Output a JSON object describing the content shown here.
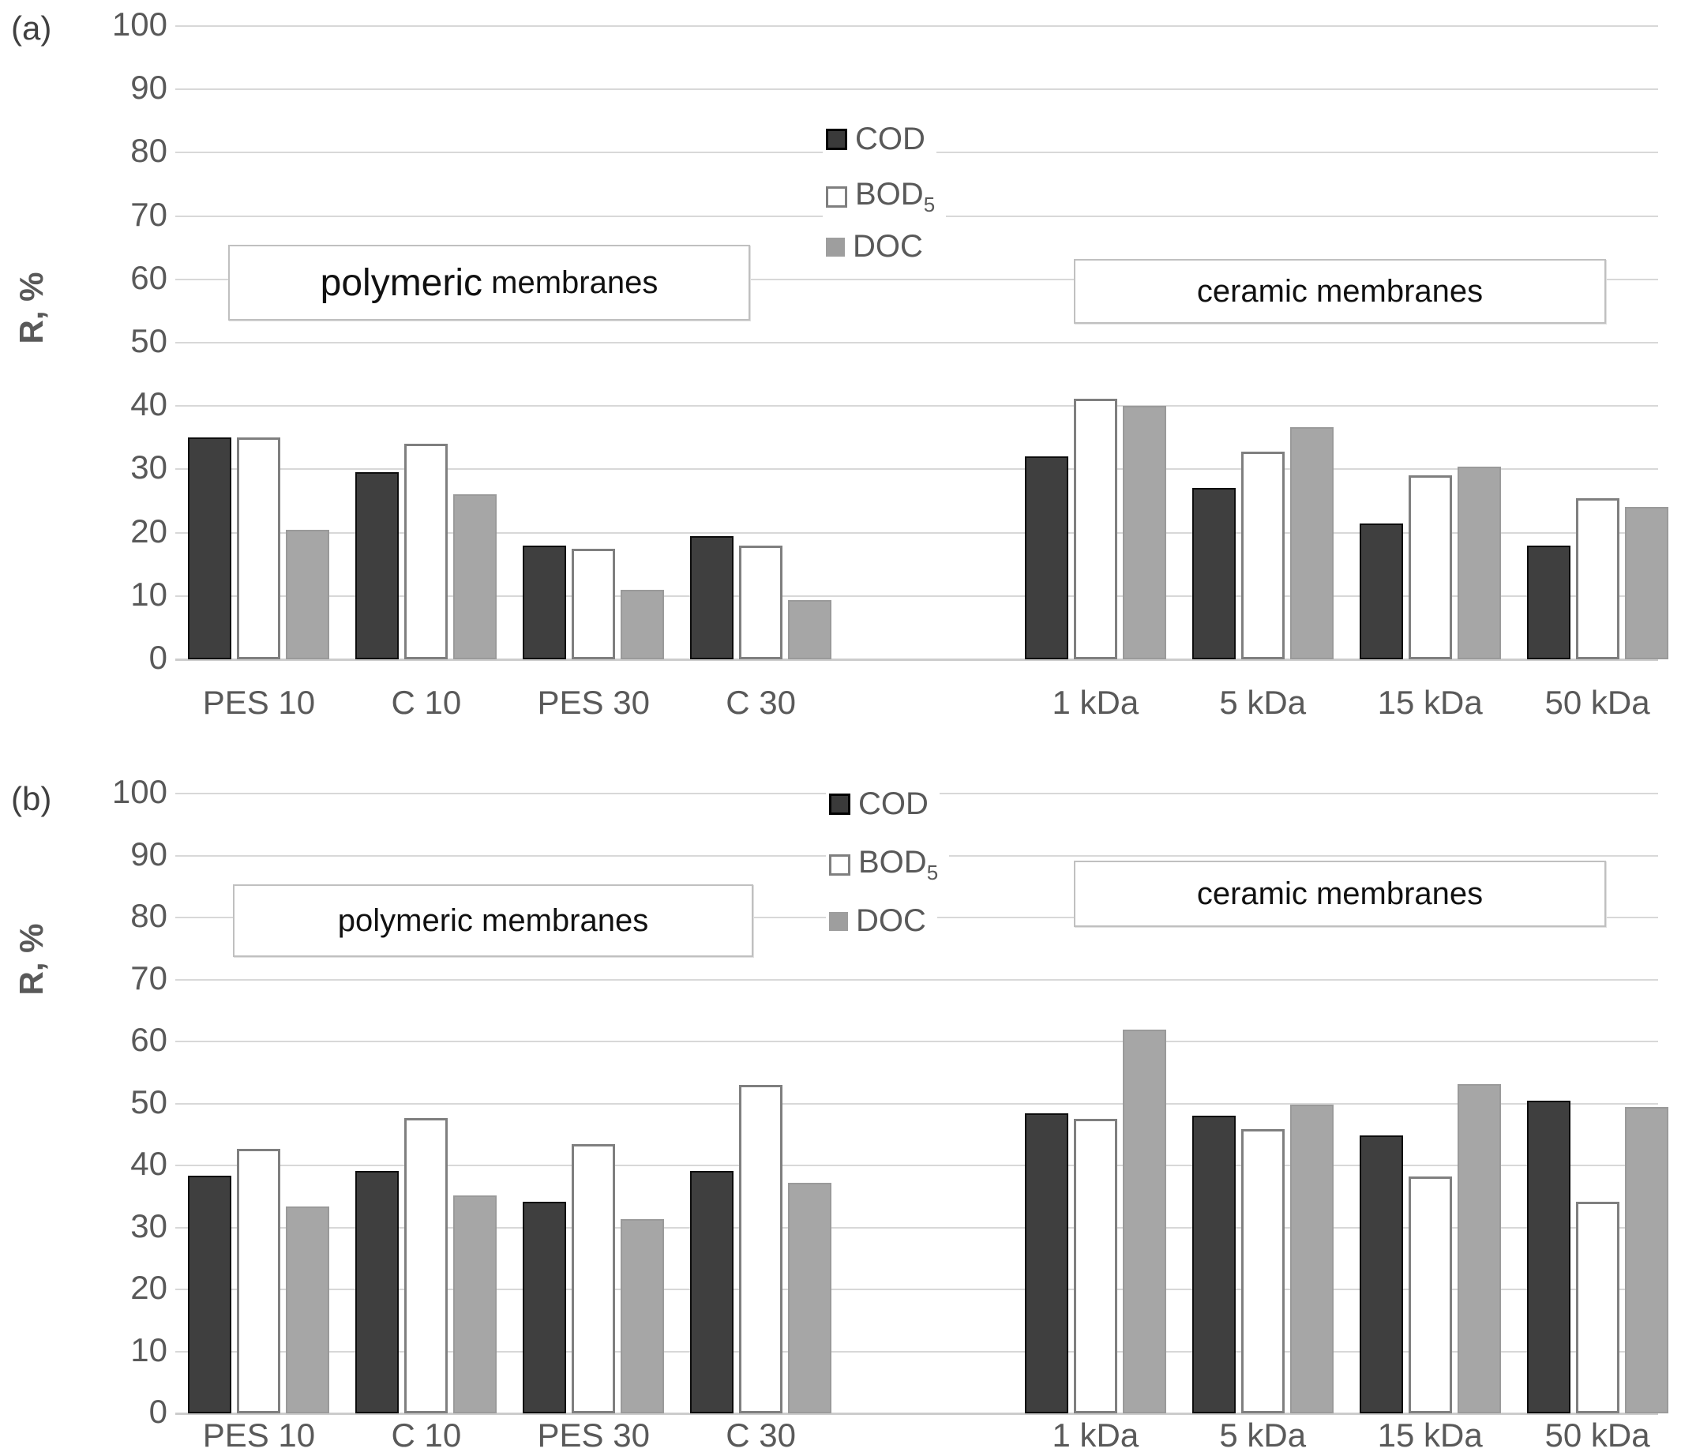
{
  "colors": {
    "cod_fill": "#3f3f3f",
    "cod_border": "#0d0d0d",
    "bod_fill": "#ffffff",
    "bod_border": "#7f7f7f",
    "doc_fill": "#a6a6a6",
    "doc_border": "#9a9a9a",
    "gridline": "#d8d8d8",
    "axis_text": "#595959",
    "annotation_border": "#c0c0c0"
  },
  "chart_data": [
    {
      "type": "bar",
      "panel_label": "(a)",
      "title": "",
      "xlabel": "",
      "ylabel": "R, %",
      "ylim": [
        0,
        100
      ],
      "yticks": [
        100,
        90,
        80,
        70,
        60,
        50,
        40,
        30,
        20,
        10,
        0
      ],
      "grid": true,
      "legend_position": "top-center",
      "legend": [
        {
          "label": "COD",
          "sub": ""
        },
        {
          "label": "BOD",
          "sub": "5"
        },
        {
          "label": "DOC",
          "sub": ""
        }
      ],
      "group_annotations": [
        {
          "text": "polymeric membranes",
          "emphasis_word": "polymeric"
        },
        {
          "text": "ceramic membranes"
        }
      ],
      "categories": [
        "PES 10",
        "C 10",
        "PES 30",
        "C 30",
        "1 kDa",
        "5 kDa",
        "15 kDa",
        "50 kDa"
      ],
      "category_groups": {
        "polymeric membranes": [
          "PES 10",
          "C 10",
          "PES 30",
          "C 30"
        ],
        "ceramic membranes": [
          "1 kDa",
          "5 kDa",
          "15 kDa",
          "50 kDa"
        ]
      },
      "series": [
        {
          "name": "COD",
          "values": [
            35.0,
            29.5,
            18.0,
            19.5,
            32.0,
            27.0,
            21.5,
            18.0
          ]
        },
        {
          "name": "BOD5",
          "values": [
            35.0,
            34.0,
            17.5,
            18.0,
            41.2,
            32.8,
            29.0,
            25.4
          ]
        },
        {
          "name": "DOC",
          "values": [
            20.5,
            26.0,
            11.0,
            9.3,
            40.0,
            36.6,
            30.4,
            24.1
          ]
        }
      ]
    },
    {
      "type": "bar",
      "panel_label": "(b)",
      "title": "",
      "xlabel": "",
      "ylabel": "R, %",
      "ylim": [
        0,
        100
      ],
      "yticks": [
        100,
        90,
        80,
        70,
        60,
        50,
        40,
        30,
        20,
        10,
        0
      ],
      "grid": true,
      "legend_position": "top-center",
      "legend": [
        {
          "label": "COD",
          "sub": ""
        },
        {
          "label": "BOD",
          "sub": "5"
        },
        {
          "label": "DOC",
          "sub": ""
        }
      ],
      "group_annotations": [
        {
          "text": "polymeric membranes"
        },
        {
          "text": "ceramic membranes"
        }
      ],
      "categories": [
        "PES 10",
        "C 10",
        "PES 30",
        "C 30",
        "1 kDa",
        "5 kDa",
        "15 kDa",
        "50 kDa"
      ],
      "category_groups": {
        "polymeric membranes": [
          "PES 10",
          "C 10",
          "PES 30",
          "C 30"
        ],
        "ceramic membranes": [
          "1 kDa",
          "5 kDa",
          "15 kDa",
          "50 kDa"
        ]
      },
      "series": [
        {
          "name": "COD",
          "values": [
            38.3,
            39.1,
            34.1,
            39.1,
            48.4,
            48.0,
            44.8,
            50.5
          ]
        },
        {
          "name": "BOD5",
          "values": [
            42.7,
            47.6,
            43.5,
            53.0,
            47.5,
            45.8,
            38.2,
            34.1
          ]
        },
        {
          "name": "DOC",
          "values": [
            33.4,
            35.1,
            31.4,
            37.2,
            61.9,
            49.8,
            53.1,
            49.4
          ]
        }
      ]
    }
  ]
}
